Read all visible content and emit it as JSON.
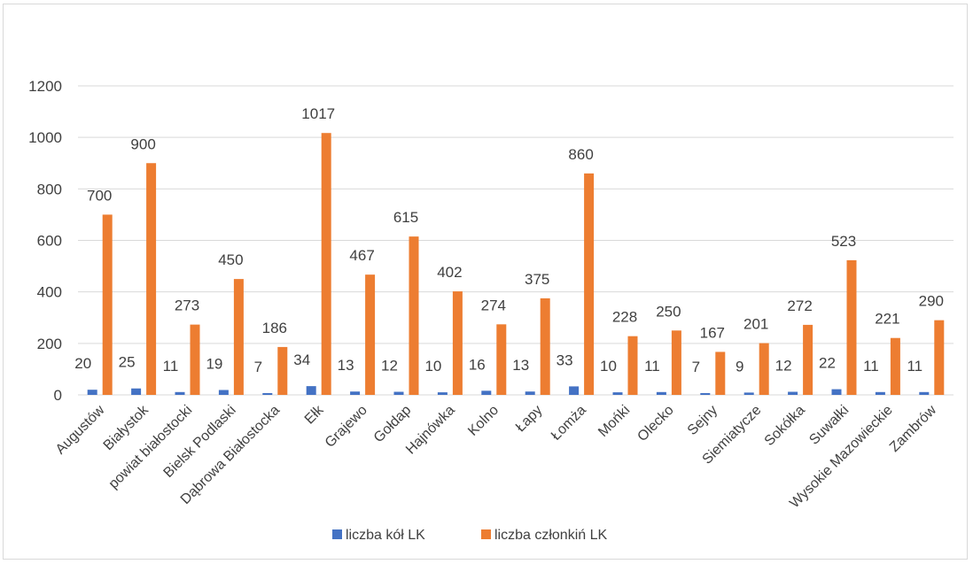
{
  "chart_data": {
    "type": "bar",
    "categories": [
      "Augustów",
      "Białystok",
      "powiat białostocki",
      "Bielsk Podlaski",
      "Dąbrowa Białostocka",
      "Ełk",
      "Grajewo",
      "Gołdap",
      "Hajnówka",
      "Kolno",
      "Łapy",
      "Łomża",
      "Mońki",
      "Olecko",
      "Sejny",
      "Siemiatycze",
      "Sokółka",
      "Suwałki",
      "Wysokie Mazowieckie",
      "Zambrów"
    ],
    "series": [
      {
        "name": "liczba kół LK",
        "color": "#4472c4",
        "values": [
          20,
          25,
          11,
          19,
          7,
          34,
          13,
          12,
          10,
          16,
          13,
          33,
          10,
          11,
          7,
          9,
          12,
          22,
          11,
          11
        ]
      },
      {
        "name": "liczba członkiń LK",
        "color": "#ed7d31",
        "values": [
          700,
          900,
          273,
          450,
          186,
          1017,
          467,
          615,
          402,
          274,
          375,
          860,
          228,
          250,
          167,
          201,
          272,
          523,
          221,
          290
        ]
      }
    ],
    "yticks": [
      "0",
      "200",
      "400",
      "600",
      "800",
      "1000",
      "1200"
    ],
    "ylim": [
      0,
      1200
    ],
    "grid": true,
    "legend_position": "bottom"
  }
}
